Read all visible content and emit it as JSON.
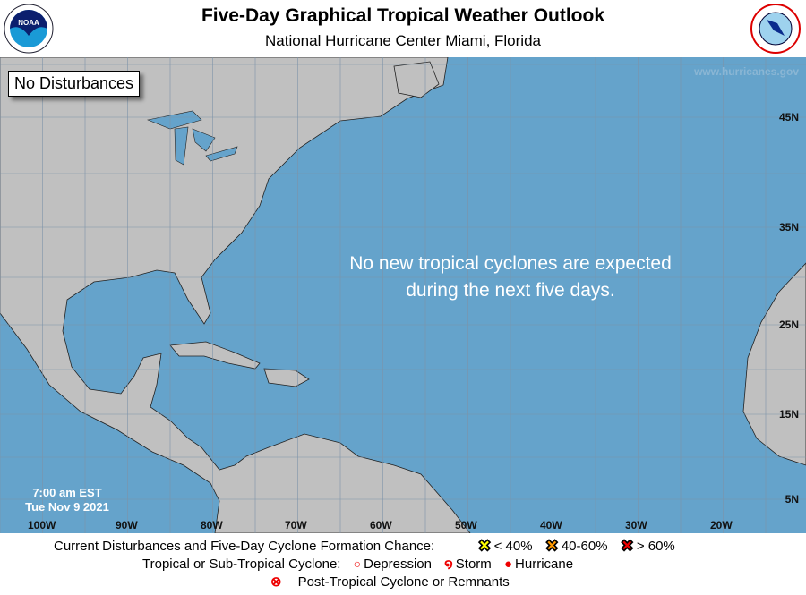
{
  "header": {
    "title": "Five-Day Graphical Tropical Weather Outlook",
    "subtitle": "National Hurricane Center  Miami, Florida",
    "noaa_logo": "NOAA",
    "nws_logo": "NATIONAL WEATHER SERVICE"
  },
  "map": {
    "status_box": "No Disturbances",
    "message_line1": "No new tropical cyclones are expected",
    "message_line2": "during the next five days.",
    "website": "www.hurricanes.gov",
    "issued_time": "7:00 am EST",
    "issued_date": "Tue Nov 9 2021",
    "latitudes": [
      "45N",
      "35N",
      "25N",
      "15N",
      "5N"
    ],
    "longitudes": [
      "100W",
      "90W",
      "80W",
      "70W",
      "60W",
      "50W",
      "40W",
      "30W",
      "20W"
    ],
    "colors": {
      "ocean": "#65a3cb",
      "land": "#c0c0c0"
    }
  },
  "legend": {
    "row1_label": "Current Disturbances and Five-Day Cyclone Formation Chance:",
    "low": "< 40%",
    "medium": "40-60%",
    "high": "> 60%",
    "row2_label": "Tropical or Sub-Tropical Cyclone:",
    "depression": "Depression",
    "storm": "Storm",
    "hurricane": "Hurricane",
    "post_tropical": "Post-Tropical Cyclone or Remnants",
    "colors": {
      "low": "#ffff00",
      "medium": "#ff9900",
      "high": "#ee0000",
      "cyclone": "#ee0000"
    }
  }
}
